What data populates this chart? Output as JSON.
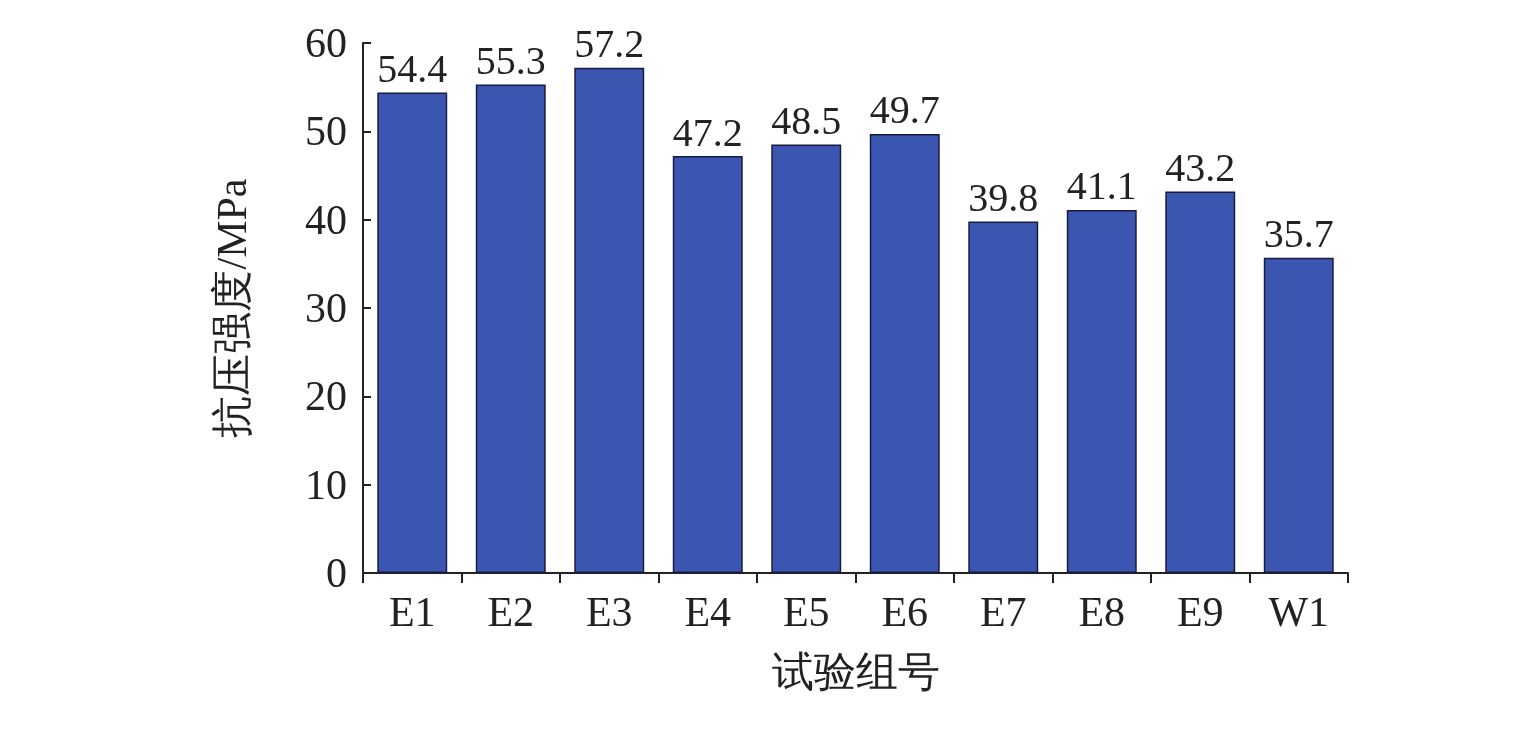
{
  "chart_data": {
    "type": "bar",
    "xlabel": "试验组号",
    "ylabel": "抗压强度/MPa",
    "categories": [
      "E1",
      "E2",
      "E3",
      "E4",
      "E5",
      "E6",
      "E7",
      "E8",
      "E9",
      "W1"
    ],
    "values": [
      54.4,
      55.3,
      57.2,
      47.2,
      48.5,
      49.7,
      39.8,
      41.1,
      43.2,
      35.7
    ],
    "color": "#3a56b0",
    "ylim": [
      0,
      60
    ],
    "yticks": [
      0,
      10,
      20,
      30,
      40,
      50,
      60
    ],
    "grid": false,
    "data_labels": true
  }
}
